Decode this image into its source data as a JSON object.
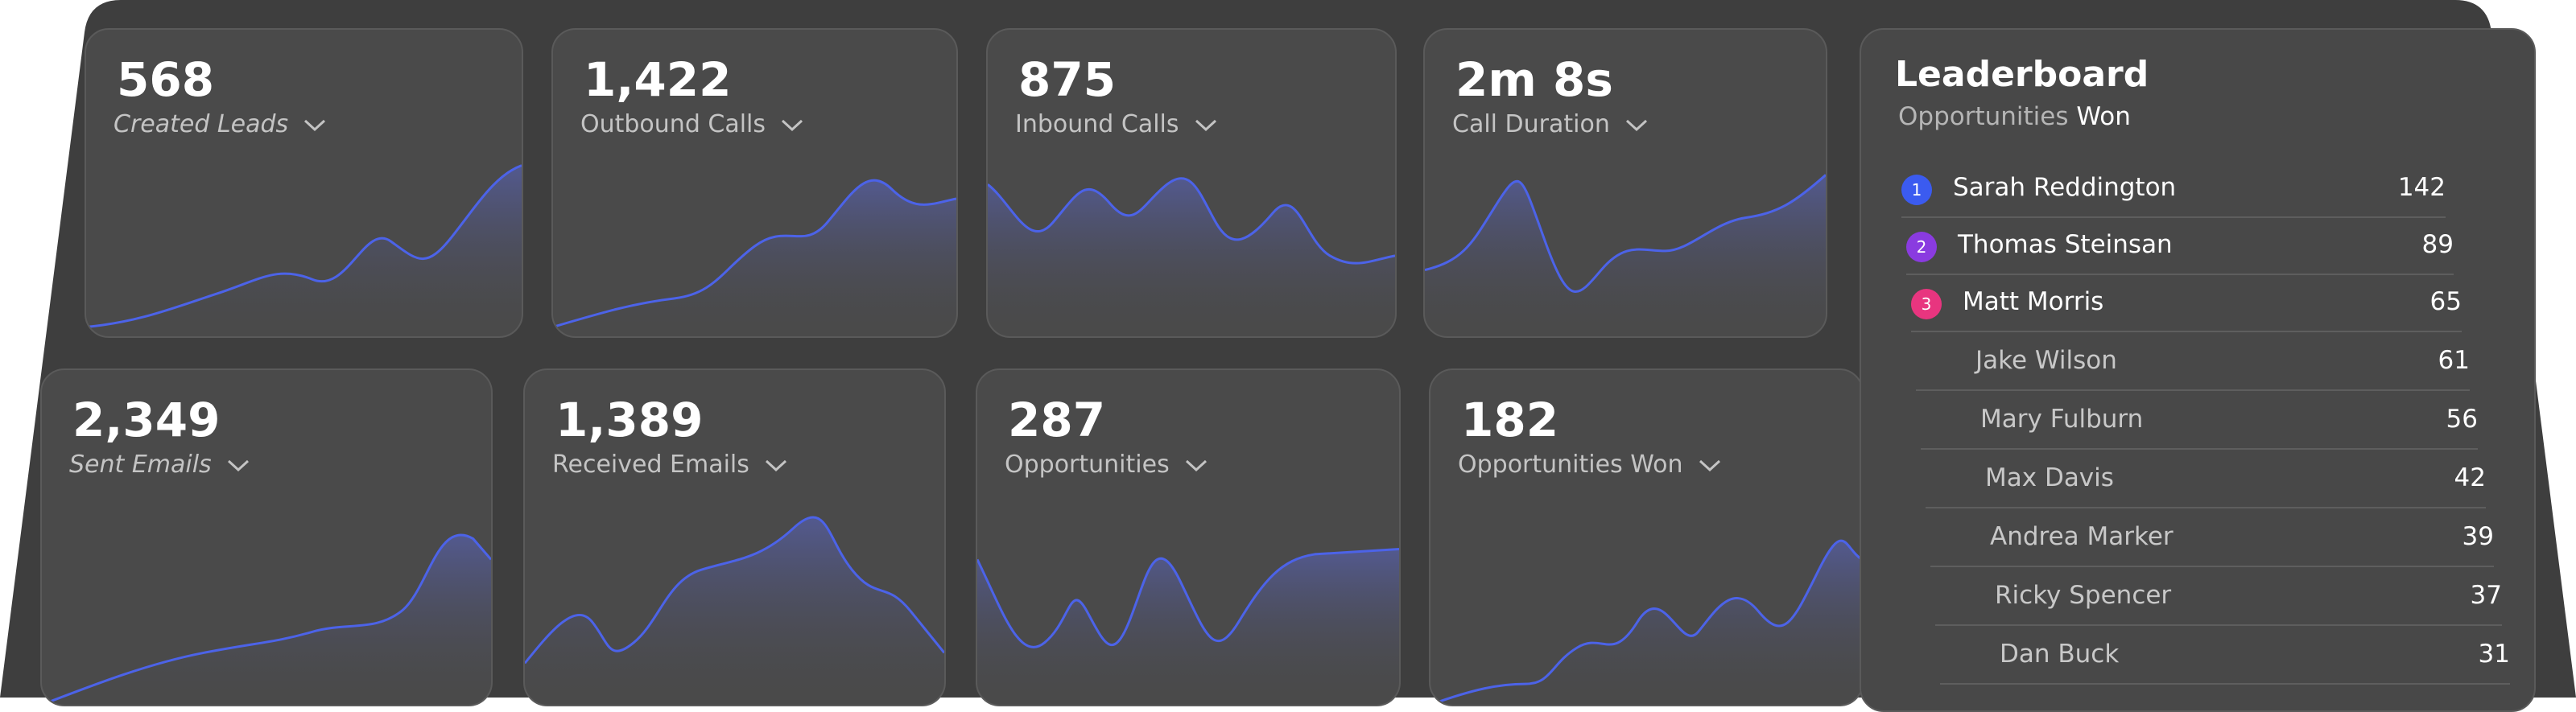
{
  "metrics": [
    {
      "value": "568",
      "label": "Created Leads"
    },
    {
      "value": "1,422",
      "label": "Outbound Calls"
    },
    {
      "value": "875",
      "label": "Inbound Calls"
    },
    {
      "value": "2m 8s",
      "label": "Call Duration"
    },
    {
      "value": "2,349",
      "label": "Sent Emails"
    },
    {
      "value": "1,389",
      "label": "Received Emails"
    },
    {
      "value": "287",
      "label": "Opportunities"
    },
    {
      "value": "182",
      "label": "Opportunities Won"
    }
  ],
  "leaderboard": {
    "title": "Leaderboard",
    "subtitle": "Opportunities",
    "subtitle_emphasis": "Won",
    "rows": [
      {
        "rank": 1,
        "name": "Sarah Reddington",
        "value": 142
      },
      {
        "rank": 2,
        "name": "Thomas Steinsan",
        "value": 89
      },
      {
        "rank": 3,
        "name": "Matt Morris",
        "value": 65
      },
      {
        "name": "Jake Wilson",
        "value": 61
      },
      {
        "name": "Mary Fulburn",
        "value": 56
      },
      {
        "name": "Max Davis",
        "value": 42
      },
      {
        "name": "Andrea Marker",
        "value": 39
      },
      {
        "name": "Ricky Spencer",
        "value": 37
      },
      {
        "name": "Dan Buck",
        "value": 31
      }
    ]
  }
}
